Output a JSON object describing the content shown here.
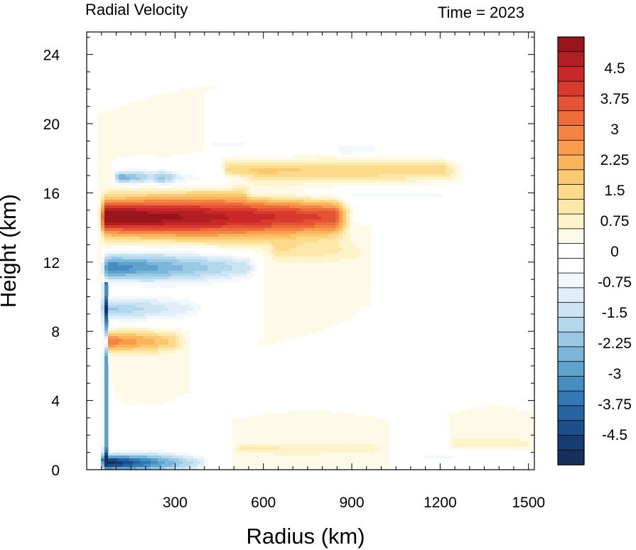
{
  "chart_data": {
    "type": "heatmap",
    "title": "Radial Velocity",
    "subtitle": "Time = 2023",
    "xlabel": "Radius (km)",
    "ylabel": "Height (km)",
    "xlim": [
      0,
      1520
    ],
    "ylim": [
      0,
      25.3
    ],
    "xticks": [
      300,
      600,
      900,
      1200,
      1500
    ],
    "yticks": [
      0,
      4,
      8,
      12,
      16,
      20,
      24
    ],
    "grid": false,
    "colorbar": {
      "position": "right",
      "vmin": -5.25,
      "vmax": 5.25,
      "step": 0.375,
      "labels": [
        "4.5",
        "3.75",
        "3",
        "2.25",
        "1.5",
        "0.75",
        "0",
        "-0.75",
        "-1.5",
        "-2.25",
        "-3",
        "-3.75",
        "-4.5"
      ],
      "label_values": [
        4.5,
        3.75,
        3,
        2.25,
        1.5,
        0.75,
        0,
        -0.75,
        -1.5,
        -2.25,
        -3,
        -3.75,
        -4.5
      ],
      "colors": [
        "#98151b",
        "#b21f23",
        "#c9272a",
        "#d93a2e",
        "#e55337",
        "#ee6b3b",
        "#f58443",
        "#f99d4d",
        "#fbb45c",
        "#fcc86f",
        "#fdd98a",
        "#fee8a9",
        "#fff3c9",
        "#fffae8",
        "#ffffff",
        "#ffffff",
        "#f2f8fc",
        "#dfeef8",
        "#cbe4f2",
        "#b3d7ec",
        "#98c8e4",
        "#7ab6da",
        "#5ea2ce",
        "#468ec1",
        "#3378b2",
        "#2563a1",
        "#1a4f8b",
        "#163d73",
        "#17305b"
      ]
    },
    "features": [
      {
        "x0": 65,
        "x1": 880,
        "z": 14.6,
        "hw": 1.0,
        "v": 5.5,
        "taper": 0.35,
        "feature": "upper-level outflow jet"
      },
      {
        "x0": 70,
        "x1": 580,
        "z": 11.7,
        "hw": 0.75,
        "v": -3.8,
        "taper": 0.6,
        "feature": "return inflow below outflow"
      },
      {
        "x0": 110,
        "x1": 320,
        "z": 16.9,
        "hw": 0.35,
        "v": -3.2,
        "taper": 0.8,
        "feature": "inflow above outflow"
      },
      {
        "x0": 250,
        "x1": 560,
        "z": 16.8,
        "hw": 0.45,
        "v": -1.2,
        "taper": 0.5,
        "feature": "upper inflow"
      },
      {
        "x0": 480,
        "x1": 1250,
        "z": 17.3,
        "hw": 0.55,
        "v": 1.6,
        "taper": 0.2,
        "feature": "upper outflow"
      },
      {
        "x0": 560,
        "x1": 1380,
        "z": 15.9,
        "hw": 0.45,
        "v": -0.9,
        "taper": 0.2,
        "feature": "upper inflow"
      },
      {
        "x0": 420,
        "x1": 1000,
        "z": 18.8,
        "hw": 0.55,
        "v": -0.8,
        "taper": 0.3,
        "feature": "upper inflow"
      },
      {
        "x0": 870,
        "x1": 1300,
        "z": 18.3,
        "hw": 0.4,
        "v": -0.6,
        "taper": 0.3,
        "feature": "upper inflow"
      },
      {
        "x0": 640,
        "x1": 940,
        "z": 12.6,
        "hw": 0.55,
        "v": 0.9,
        "taper": 0.3,
        "feature": "mid-level outflow"
      },
      {
        "x0": 70,
        "x1": 400,
        "z": 9.3,
        "hw": 0.6,
        "v": -2.4,
        "taper": 0.6,
        "feature": "mid-level inflow"
      },
      {
        "x0": 70,
        "x1": 330,
        "z": 7.4,
        "hw": 0.5,
        "v": 3.0,
        "taper": 0.6,
        "feature": "mid-level outflow"
      },
      {
        "x0": 65,
        "x1": 420,
        "z": 0.4,
        "hw": 0.45,
        "v": -5.6,
        "taper": 0.8,
        "feature": "boundary-layer inflow"
      },
      {
        "x0": 520,
        "x1": 1000,
        "z": 1.2,
        "hw": 0.3,
        "v": 0.8,
        "taper": 0.2,
        "feature": "near-surface outflow"
      },
      {
        "x0": 1250,
        "x1": 1520,
        "z": 1.5,
        "hw": 0.3,
        "v": 0.7,
        "taper": 0.2,
        "feature": "near-surface outflow"
      },
      {
        "x0": 1150,
        "x1": 1520,
        "z": 0.7,
        "hw": 0.3,
        "v": -0.8,
        "taper": 0.2,
        "feature": "near-surface inflow"
      }
    ],
    "eyewall": {
      "x": 62,
      "z_bottom": 0.5,
      "z_top": 10.8,
      "v": -5.5
    }
  }
}
